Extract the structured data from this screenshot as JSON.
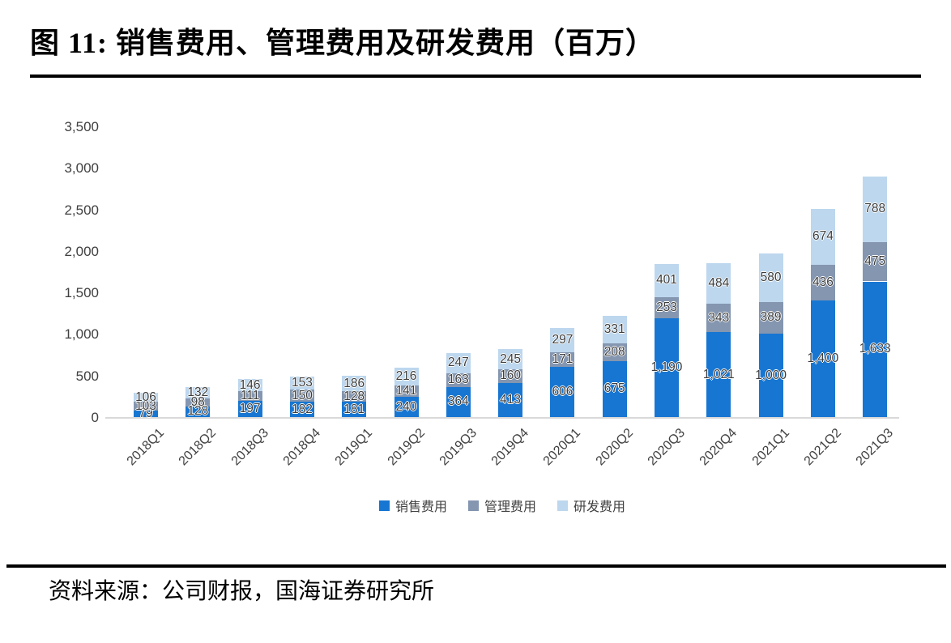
{
  "figure": {
    "title_prefix": "图 11:",
    "title_text": "销售费用、管理费用及研发费用（百万）",
    "source": "资料来源：公司财报，国海证券研究所"
  },
  "chart_data": {
    "type": "bar",
    "stacked": true,
    "title": "销售费用、管理费用及研发费用（百万）",
    "xlabel": "",
    "ylabel": "",
    "categories": [
      "2018Q1",
      "2018Q2",
      "2018Q3",
      "2018Q4",
      "2019Q1",
      "2019Q2",
      "2019Q3",
      "2019Q4",
      "2020Q1",
      "2020Q2",
      "2020Q3",
      "2020Q4",
      "2021Q1",
      "2021Q2",
      "2021Q3"
    ],
    "series": [
      {
        "name": "销售费用",
        "color": "#1776D2",
        "values": [
          79,
          128,
          197,
          182,
          181,
          240,
          364,
          413,
          606,
          675,
          1190,
          1021,
          1000,
          1400,
          1633
        ]
      },
      {
        "name": "管理费用",
        "color": "#8496B0",
        "values": [
          103,
          98,
          111,
          150,
          128,
          141,
          163,
          160,
          171,
          208,
          253,
          343,
          389,
          436,
          475
        ]
      },
      {
        "name": "研发费用",
        "color": "#BDD7EE",
        "values": [
          106,
          132,
          146,
          153,
          186,
          216,
          247,
          245,
          297,
          331,
          401,
          484,
          580,
          674,
          788
        ]
      }
    ],
    "ylim": [
      0,
      3500
    ],
    "ytick_step": 500,
    "ytick_labels": [
      "0",
      "500",
      "1,000",
      "1,500",
      "2,000",
      "2,500",
      "3,000",
      "3,500"
    ],
    "data_labels": true,
    "grid": false,
    "legend_position": "bottom",
    "colors": {
      "label_text": "#3d3d3d",
      "tick_text": "#404040",
      "axis_line": "#d9d9d9",
      "rule": "#000000"
    }
  }
}
